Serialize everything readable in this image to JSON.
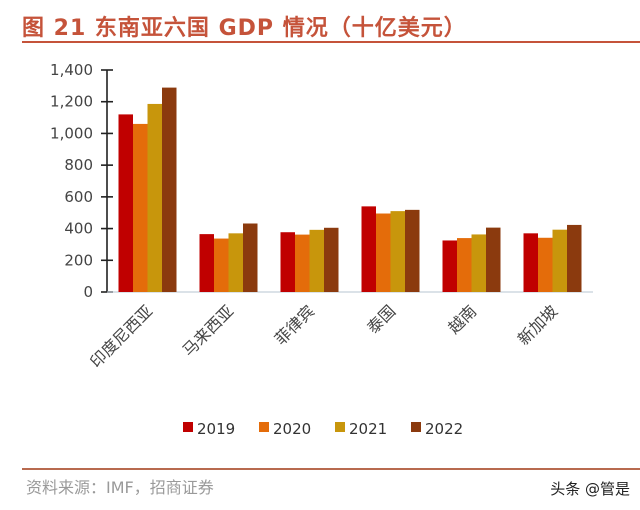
{
  "header": {
    "title": "图 21 东南亚六国 GDP 情况（十亿美元）"
  },
  "footer": {
    "source": "资料来源：IMF，招商证券",
    "watermark": "头条 @管是"
  },
  "chart_data": {
    "type": "bar",
    "title": "图 21 东南亚六国 GDP 情况（十亿美元）",
    "xlabel": "",
    "ylabel": "",
    "ylim": [
      0,
      1400
    ],
    "yticks": [
      0,
      200,
      400,
      600,
      800,
      1000,
      1200,
      1400
    ],
    "ytick_labels": [
      "0",
      "200",
      "400",
      "600",
      "800",
      "1,000",
      "1,200",
      "1,400"
    ],
    "grid": false,
    "legend_position": "bottom",
    "categories": [
      "印度尼西亚",
      "马来西亚",
      "菲律宾",
      "泰国",
      "越南",
      "新加坡"
    ],
    "series": [
      {
        "name": "2019",
        "color": "#C00000",
        "values": [
          1120,
          365,
          377,
          540,
          325,
          370
        ]
      },
      {
        "name": "2020",
        "color": "#E46C0A",
        "values": [
          1060,
          337,
          362,
          495,
          340,
          342
        ]
      },
      {
        "name": "2021",
        "color": "#C8960C",
        "values": [
          1186,
          370,
          392,
          510,
          363,
          393
        ]
      },
      {
        "name": "2022",
        "color": "#8B3A0E",
        "values": [
          1289,
          432,
          405,
          518,
          406,
          423
        ]
      }
    ]
  }
}
